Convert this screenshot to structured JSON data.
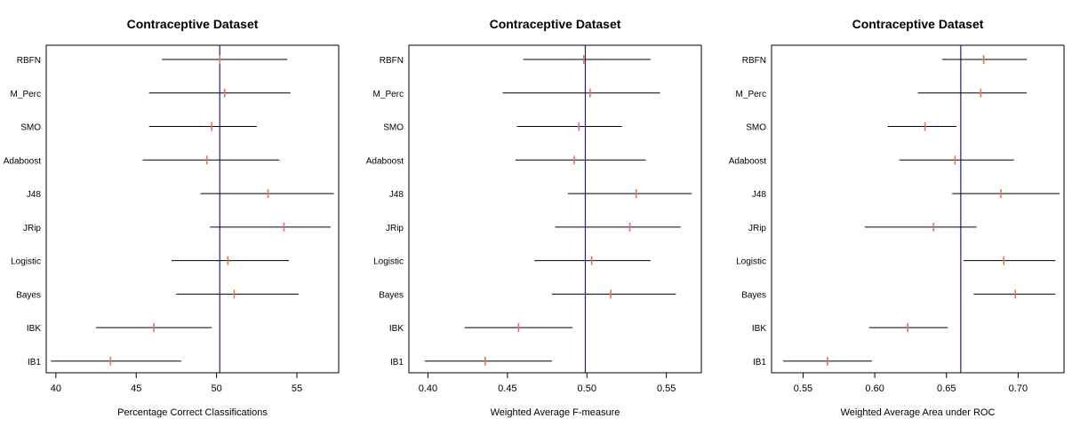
{
  "colors": {
    "interval": "#000000",
    "point": "#e8735a",
    "reference": "#1f1f8f",
    "frame": "#000000"
  },
  "chart_data": [
    {
      "type": "interval",
      "title": "Contraceptive Dataset",
      "xlabel": "Percentage Correct Classifications",
      "categories": [
        "RBFN",
        "M_Perc",
        "SMO",
        "Adaboost",
        "J48",
        "JRip",
        "Logistic",
        "Bayes",
        "IBK",
        "IB1"
      ],
      "xlim": [
        39.4,
        57.6
      ],
      "xticks": [
        40,
        45,
        50,
        55
      ],
      "reference": 50.2,
      "points": [
        {
          "label": "RBFN",
          "lower": 46.6,
          "value": 50.2,
          "upper": 54.4
        },
        {
          "label": "M_Perc",
          "lower": 45.8,
          "value": 50.5,
          "upper": 54.6
        },
        {
          "label": "SMO",
          "lower": 45.8,
          "value": 49.7,
          "upper": 52.5
        },
        {
          "label": "Adaboost",
          "lower": 45.4,
          "value": 49.4,
          "upper": 53.9
        },
        {
          "label": "J48",
          "lower": 49.0,
          "value": 53.2,
          "upper": 57.3
        },
        {
          "label": "JRip",
          "lower": 49.6,
          "value": 54.2,
          "upper": 57.1
        },
        {
          "label": "Logistic",
          "lower": 47.2,
          "value": 50.7,
          "upper": 54.5
        },
        {
          "label": "Bayes",
          "lower": 47.5,
          "value": 51.1,
          "upper": 55.1
        },
        {
          "label": "IBK",
          "lower": 42.5,
          "value": 46.1,
          "upper": 49.7
        },
        {
          "label": "IB1",
          "lower": 39.7,
          "value": 43.4,
          "upper": 47.8
        }
      ]
    },
    {
      "type": "interval",
      "title": "Contraceptive Dataset",
      "xlabel": "Weighted Average F-measure",
      "categories": [
        "RBFN",
        "M_Perc",
        "SMO",
        "Adaboost",
        "J48",
        "JRip",
        "Logistic",
        "Bayes",
        "IBK",
        "IB1"
      ],
      "xlim": [
        0.388,
        0.572
      ],
      "xticks": [
        0.4,
        0.45,
        0.5,
        0.55
      ],
      "xtick_labels": [
        "0.40",
        "0.45",
        "0.50",
        "0.55"
      ],
      "reference": 0.499,
      "points": [
        {
          "label": "RBFN",
          "lower": 0.46,
          "value": 0.498,
          "upper": 0.54
        },
        {
          "label": "M_Perc",
          "lower": 0.447,
          "value": 0.502,
          "upper": 0.546
        },
        {
          "label": "SMO",
          "lower": 0.456,
          "value": 0.495,
          "upper": 0.522
        },
        {
          "label": "Adaboost",
          "lower": 0.455,
          "value": 0.492,
          "upper": 0.537
        },
        {
          "label": "J48",
          "lower": 0.488,
          "value": 0.531,
          "upper": 0.566
        },
        {
          "label": "JRip",
          "lower": 0.48,
          "value": 0.527,
          "upper": 0.559
        },
        {
          "label": "Logistic",
          "lower": 0.467,
          "value": 0.503,
          "upper": 0.54
        },
        {
          "label": "Bayes",
          "lower": 0.478,
          "value": 0.515,
          "upper": 0.556
        },
        {
          "label": "IBK",
          "lower": 0.423,
          "value": 0.457,
          "upper": 0.491
        },
        {
          "label": "IB1",
          "lower": 0.398,
          "value": 0.436,
          "upper": 0.478
        }
      ]
    },
    {
      "type": "interval",
      "title": "Contraceptive Dataset",
      "xlabel": "Weighted Average Area under ROC",
      "categories": [
        "RBFN",
        "M_Perc",
        "SMO",
        "Adaboost",
        "J48",
        "JRip",
        "Logistic",
        "Bayes",
        "IBK",
        "IB1"
      ],
      "xlim": [
        0.528,
        0.732
      ],
      "xticks": [
        0.55,
        0.6,
        0.65,
        0.7
      ],
      "xtick_labels": [
        "0.55",
        "0.60",
        "0.65",
        "0.70"
      ],
      "reference": 0.66,
      "points": [
        {
          "label": "RBFN",
          "lower": 0.647,
          "value": 0.676,
          "upper": 0.706
        },
        {
          "label": "M_Perc",
          "lower": 0.63,
          "value": 0.674,
          "upper": 0.706
        },
        {
          "label": "SMO",
          "lower": 0.609,
          "value": 0.635,
          "upper": 0.657
        },
        {
          "label": "Adaboost",
          "lower": 0.617,
          "value": 0.656,
          "upper": 0.697
        },
        {
          "label": "J48",
          "lower": 0.654,
          "value": 0.688,
          "upper": 0.729
        },
        {
          "label": "JRip",
          "lower": 0.593,
          "value": 0.641,
          "upper": 0.671
        },
        {
          "label": "Logistic",
          "lower": 0.662,
          "value": 0.69,
          "upper": 0.726
        },
        {
          "label": "Bayes",
          "lower": 0.669,
          "value": 0.698,
          "upper": 0.726
        },
        {
          "label": "IBK",
          "lower": 0.596,
          "value": 0.623,
          "upper": 0.651
        },
        {
          "label": "IB1",
          "lower": 0.536,
          "value": 0.567,
          "upper": 0.598
        }
      ]
    }
  ]
}
